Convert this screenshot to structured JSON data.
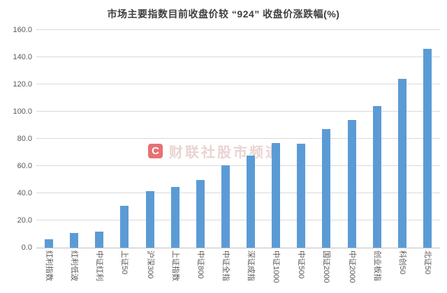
{
  "chart_data": {
    "type": "bar",
    "title": "市场主要指数目前收盘价较 “924” 收盘价涨跌幅(%)",
    "categories": [
      "红利指数",
      "红利低波",
      "中证红利",
      "上证50",
      "沪深300",
      "上证指数",
      "中证800",
      "中证全指",
      "深证成指",
      "中证1000",
      "中证500",
      "国证2000",
      "中证2000",
      "创业板指",
      "科创50",
      "北证50"
    ],
    "values": [
      6.2,
      10.8,
      11.9,
      31.0,
      41.3,
      44.4,
      49.9,
      60.5,
      67.8,
      77.0,
      76.3,
      87.0,
      94.0,
      103.9,
      124.0,
      146.3
    ],
    "xlabel": "",
    "ylabel": "",
    "ylim": [
      0,
      160
    ],
    "ytick_step": 20,
    "ytick_labels": [
      "0.0",
      "20.0",
      "40.0",
      "60.0",
      "80.0",
      "100.0",
      "120.0",
      "140.0",
      "160.0"
    ],
    "grid": true,
    "legend_position": "none",
    "bar_color": "#5b9bd5",
    "gridline_color": "#d9d9d9",
    "axis_text_color": "#595959",
    "x_label_rotation_deg": 90
  },
  "watermark": {
    "logo_letter": "C",
    "logo_color": "#e04444",
    "text": "财联社股市频道"
  }
}
